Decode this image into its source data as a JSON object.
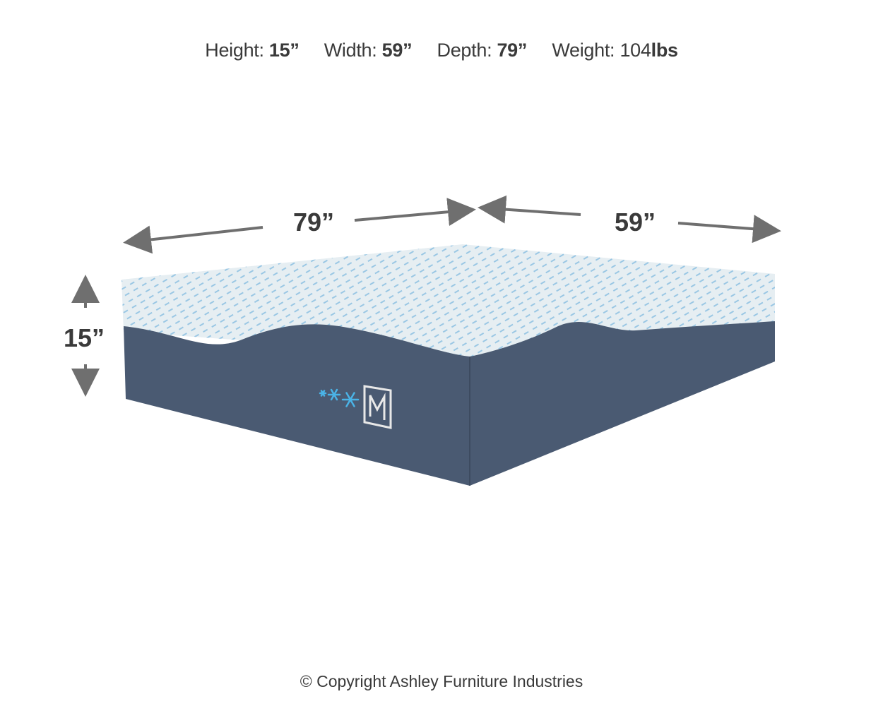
{
  "specs": [
    {
      "label": "Height:",
      "value": "15”"
    },
    {
      "label": "Width:",
      "value": "59”"
    },
    {
      "label": "Depth:",
      "value": "79”"
    },
    {
      "label": "Weight:",
      "value": "104",
      "unit": "lbs"
    }
  ],
  "dimension_labels": {
    "depth": "79”",
    "width": "59”",
    "height": "15”"
  },
  "copyright": "© Copyright Ashley Furniture Industries",
  "colors": {
    "arrow": "#6f6f6f",
    "base": "#4a5a72",
    "top": "#e6eef2",
    "pattern": "#2f8fd0",
    "snowflake": "#4ab3e6"
  },
  "logo_letter": "M"
}
